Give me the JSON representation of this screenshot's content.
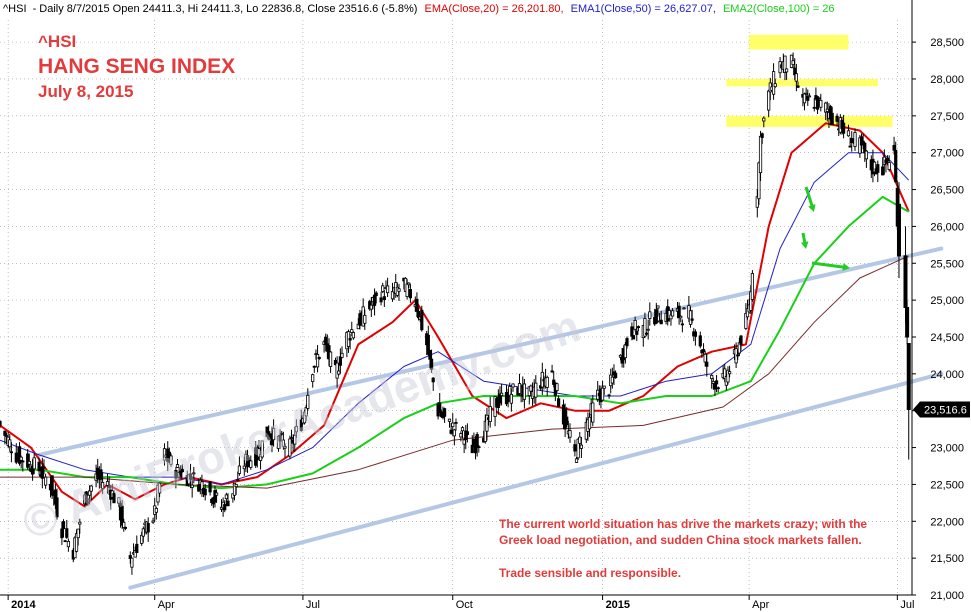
{
  "header": {
    "symbol": "^HSI",
    "info": "- Daily 8/7/2015 Open 24411.3, Hi 24411.3, Lo 22836.8, Close 23516.6 (-5.8%)",
    "ema20_label": "EMA(Close,20) = 26,201.80,",
    "ema50_label": "EMA1(Close,50) = 26,627.07,",
    "ema100_label": "EMA2(Close,100) = 26"
  },
  "titles": {
    "line1": "^HSI",
    "line2": "HANG SENG INDEX",
    "line3": "July 8, 2015"
  },
  "note": {
    "line1": "The current world situation has drive the markets crazy; with the",
    "line2": "Greek load negotiation, and sudden China stock markets fallen.",
    "line3": "Trade sensible and responsible."
  },
  "watermark": "© AmiBrokerAcademy.com",
  "last_price_label": "23,516.6",
  "colors": {
    "ema20": "#e00000",
    "ema50": "#2020c8",
    "ema100": "#18d018",
    "ema200": "#7a2a2a",
    "channel": "#b4c8e6",
    "highlight": "#ffff50",
    "arrow": "#22cc22",
    "price": "#000000"
  },
  "chart_data": {
    "type": "line",
    "ylim": [
      21000,
      28800
    ],
    "yticks": [
      21000,
      21500,
      22000,
      22500,
      23000,
      23500,
      24000,
      24500,
      25000,
      25500,
      26000,
      26500,
      27000,
      27500,
      28000,
      28500
    ],
    "ytick_labels": [
      "21,000",
      "21,500",
      "22,000",
      "22,500",
      "23,000",
      "23,500",
      "24,000",
      "24,500",
      "25,000",
      "25,500",
      "26,000",
      "26,500",
      "27,000",
      "27,500",
      "28,000",
      "28,500"
    ],
    "xlim": [
      "2013-12-27",
      "2015-07-10"
    ],
    "xticks": [
      "2014-01-01",
      "2014-04-01",
      "2014-07-01",
      "2014-10-01",
      "2015-01-01",
      "2015-04-01",
      "2015-07-01"
    ],
    "xtick_labels": [
      "2014",
      "Apr",
      "Jul",
      "Oct",
      "2015",
      "Apr",
      "Jul"
    ],
    "grid": true,
    "last_close": 23516.6,
    "series": [
      {
        "name": "^HSI",
        "type": "price",
        "x": [
          "2013-12-27",
          "2014-01-06",
          "2014-01-13",
          "2014-01-20",
          "2014-01-27",
          "2014-02-03",
          "2014-02-10",
          "2014-02-17",
          "2014-02-24",
          "2014-03-03",
          "2014-03-10",
          "2014-03-17",
          "2014-03-24",
          "2014-04-01",
          "2014-04-07",
          "2014-04-14",
          "2014-04-22",
          "2014-05-01",
          "2014-05-12",
          "2014-05-19",
          "2014-05-26",
          "2014-06-03",
          "2014-06-09",
          "2014-06-16",
          "2014-06-23",
          "2014-07-01",
          "2014-07-07",
          "2014-07-14",
          "2014-07-21",
          "2014-07-28",
          "2014-08-04",
          "2014-08-11",
          "2014-08-18",
          "2014-08-25",
          "2014-09-01",
          "2014-09-08",
          "2014-09-15",
          "2014-09-22",
          "2014-09-29",
          "2014-10-06",
          "2014-10-13",
          "2014-10-20",
          "2014-10-27",
          "2014-11-03",
          "2014-11-10",
          "2014-11-17",
          "2014-11-24",
          "2014-12-01",
          "2014-12-08",
          "2014-12-15",
          "2014-12-22",
          "2014-12-29",
          "2015-01-05",
          "2015-01-12",
          "2015-01-19",
          "2015-01-26",
          "2015-02-02",
          "2015-02-09",
          "2015-02-16",
          "2015-02-23",
          "2015-03-02",
          "2015-03-09",
          "2015-03-16",
          "2015-03-23",
          "2015-03-30",
          "2015-04-02",
          "2015-04-08",
          "2015-04-13",
          "2015-04-20",
          "2015-04-27",
          "2015-05-04",
          "2015-05-11",
          "2015-05-18",
          "2015-05-26",
          "2015-06-01",
          "2015-06-08",
          "2015-06-15",
          "2015-06-22",
          "2015-06-29",
          "2015-07-02",
          "2015-07-06",
          "2015-07-07",
          "2015-07-08"
        ],
        "values": [
          23300,
          22900,
          22800,
          22700,
          22500,
          21900,
          21600,
          22300,
          22600,
          22500,
          22200,
          21500,
          21800,
          22100,
          22900,
          22700,
          22600,
          22500,
          22200,
          22400,
          22800,
          22900,
          23200,
          23100,
          23000,
          23400,
          24100,
          24400,
          24000,
          24500,
          24700,
          24900,
          25100,
          25100,
          25200,
          25000,
          24400,
          23500,
          23300,
          23200,
          23000,
          23200,
          23600,
          23700,
          23800,
          23700,
          23900,
          24000,
          23400,
          22900,
          23300,
          23700,
          23800,
          24200,
          24600,
          24600,
          24800,
          24800,
          24800,
          24800,
          24400,
          23900,
          23900,
          24200,
          24700,
          25100,
          27200,
          27800,
          28200,
          28200,
          27700,
          27700,
          27600,
          27400,
          27200,
          27100,
          26800,
          26800,
          27000,
          25700,
          24800,
          23700,
          23516.6
        ]
      },
      {
        "name": "EMA(Close,20)",
        "type": "ema",
        "x": [
          "2013-12-27",
          "2014-01-15",
          "2014-02-03",
          "2014-02-17",
          "2014-03-03",
          "2014-03-20",
          "2014-04-07",
          "2014-04-22",
          "2014-05-12",
          "2014-06-03",
          "2014-06-23",
          "2014-07-14",
          "2014-08-04",
          "2014-08-25",
          "2014-09-08",
          "2014-09-22",
          "2014-10-13",
          "2014-11-03",
          "2014-11-24",
          "2014-12-15",
          "2015-01-05",
          "2015-01-26",
          "2015-02-16",
          "2015-03-09",
          "2015-03-30",
          "2015-04-13",
          "2015-04-27",
          "2015-05-18",
          "2015-06-08",
          "2015-06-22",
          "2015-07-08"
        ],
        "values": [
          23300,
          23000,
          22400,
          22200,
          22500,
          22300,
          22500,
          22600,
          22500,
          22600,
          22900,
          23300,
          24400,
          24700,
          25000,
          24500,
          23700,
          23400,
          23600,
          23500,
          23500,
          23700,
          24100,
          24300,
          24400,
          26000,
          27000,
          27400,
          27300,
          27000,
          26202
        ]
      },
      {
        "name": "EMA1(Close,50)",
        "type": "ema",
        "x": [
          "2013-12-27",
          "2014-01-20",
          "2014-02-17",
          "2014-03-17",
          "2014-04-14",
          "2014-05-12",
          "2014-06-09",
          "2014-07-07",
          "2014-08-04",
          "2014-09-01",
          "2014-09-22",
          "2014-10-20",
          "2014-11-17",
          "2014-12-15",
          "2015-01-12",
          "2015-02-09",
          "2015-03-09",
          "2015-04-02",
          "2015-04-20",
          "2015-05-11",
          "2015-06-01",
          "2015-06-22",
          "2015-07-08"
        ],
        "values": [
          23100,
          22900,
          22700,
          22600,
          22600,
          22500,
          22700,
          23000,
          23600,
          24100,
          24300,
          23900,
          23800,
          23700,
          23700,
          23900,
          24000,
          24400,
          25700,
          26600,
          27000,
          27000,
          26627
        ]
      },
      {
        "name": "EMA2(Close,100)",
        "type": "ema",
        "x": [
          "2013-12-27",
          "2014-01-20",
          "2014-02-17",
          "2014-03-17",
          "2014-04-14",
          "2014-05-12",
          "2014-06-09",
          "2014-07-07",
          "2014-08-04",
          "2014-09-01",
          "2014-09-22",
          "2014-10-20",
          "2014-11-17",
          "2014-12-15",
          "2015-01-12",
          "2015-02-09",
          "2015-03-09",
          "2015-04-02",
          "2015-04-20",
          "2015-05-11",
          "2015-06-01",
          "2015-06-22",
          "2015-07-08"
        ],
        "values": [
          22700,
          22700,
          22600,
          22600,
          22500,
          22450,
          22500,
          22650,
          23000,
          23400,
          23600,
          23700,
          23700,
          23700,
          23600,
          23700,
          23700,
          23900,
          24600,
          25500,
          26000,
          26400,
          26200
        ]
      },
      {
        "name": "EMA(Close,200)",
        "type": "ema",
        "x": [
          "2013-12-27",
          "2014-02-17",
          "2014-04-14",
          "2014-06-09",
          "2014-08-04",
          "2014-10-01",
          "2014-12-01",
          "2015-01-26",
          "2015-03-16",
          "2015-04-13",
          "2015-05-11",
          "2015-06-08",
          "2015-07-08"
        ],
        "values": [
          22600,
          22600,
          22500,
          22450,
          22700,
          23100,
          23250,
          23300,
          23550,
          24000,
          24700,
          25300,
          25600
        ]
      }
    ],
    "channel_lines": [
      {
        "x": [
          "2014-01-20",
          "2015-07-28"
        ],
        "values": [
          22900,
          25700
        ]
      },
      {
        "x": [
          "2014-03-17",
          "2015-07-28"
        ],
        "values": [
          21100,
          24000
        ]
      }
    ],
    "resistance_zones": [
      {
        "x": [
          "2015-04-01",
          "2015-06-01"
        ],
        "values": [
          28400,
          28600
        ]
      },
      {
        "x": [
          "2015-03-18",
          "2015-06-19"
        ],
        "values": [
          27900,
          28000
        ]
      },
      {
        "x": [
          "2015-03-18",
          "2015-06-28"
        ],
        "values": [
          27350,
          27500
        ]
      }
    ]
  }
}
